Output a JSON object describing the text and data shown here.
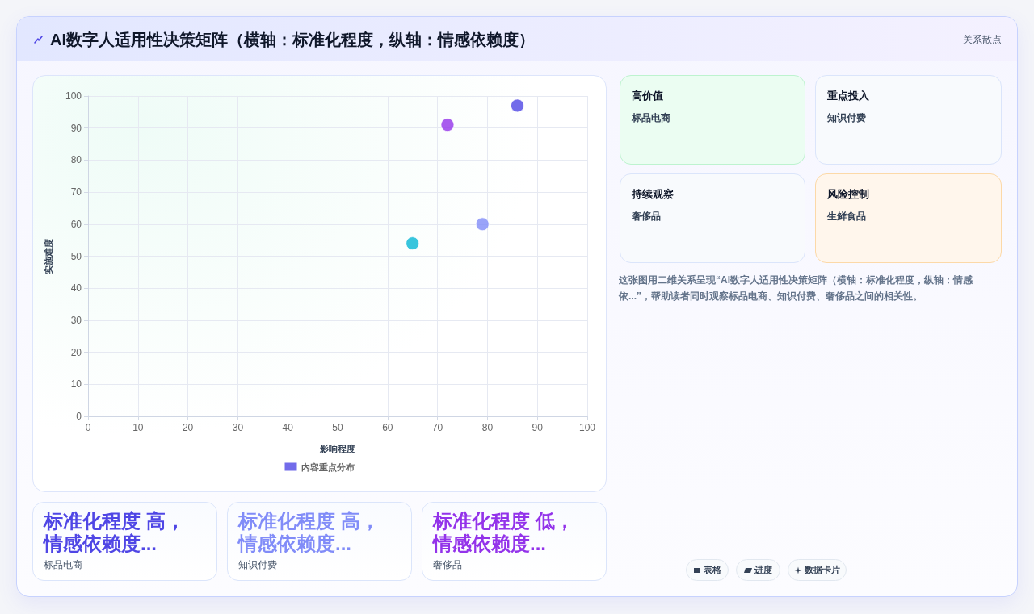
{
  "chart_data": [
    {
      "type": "other",
      "title": "AI数字人适用性决策矩阵（横轴：标准化程度，纵轴：情感依赖度）",
      "subtitle": "关系散点"
    },
    {
      "type": "scatter",
      "xlabel": "影响程度",
      "ylabel": "实施难度",
      "x": [
        86,
        79,
        72,
        65
      ],
      "series": [
        {
          "name": "内容重点分布",
          "color": "#4f46e5",
          "colors": [
            "#4f46e5",
            "#818cf8",
            "#9333ea",
            "#06b6d4"
          ],
          "values": [
            97,
            60,
            91,
            54
          ]
        }
      ],
      "xlim": [
        0,
        100
      ],
      "ylim": [
        0,
        100
      ],
      "xticks": [
        0,
        10,
        20,
        30,
        40,
        50,
        60,
        70,
        80,
        90,
        100
      ],
      "yticks": [
        0,
        10,
        20,
        30,
        40,
        50,
        60,
        70,
        80,
        90,
        100
      ],
      "grid": true,
      "legend": "bottom",
      "marker": "circle",
      "annotations": [
        "这张图用二维关系呈现“AI数字人适用性决策矩阵（横轴：标准化程度，纵轴：情感依...”，帮助读者同时观察标品电商、知识付费、奢侈品之间的相关性。"
      ]
    },
    {
      "type": "other",
      "title": "高价值",
      "annotations": [
        "标品电商"
      ]
    },
    {
      "type": "other",
      "title": "重点投入",
      "annotations": [
        "知识付费"
      ]
    },
    {
      "type": "other",
      "title": "持续观察",
      "annotations": [
        "奢侈品"
      ]
    },
    {
      "type": "other",
      "title": "风险控制",
      "annotations": [
        "生鲜食品"
      ]
    },
    {
      "type": "other",
      "title": "标准化程度 高，情感依赖度...",
      "annotations": [
        "标品电商"
      ]
    },
    {
      "type": "other",
      "title": "标准化程度 高，情感依赖度...",
      "annotations": [
        "知识付费"
      ]
    },
    {
      "type": "other",
      "title": "标准化程度 低，情感依赖度...",
      "annotations": [
        "奢侈品"
      ]
    },
    {
      "type": "other",
      "annotations": [
        "表格",
        "进度",
        "数据卡片"
      ]
    }
  ]
}
